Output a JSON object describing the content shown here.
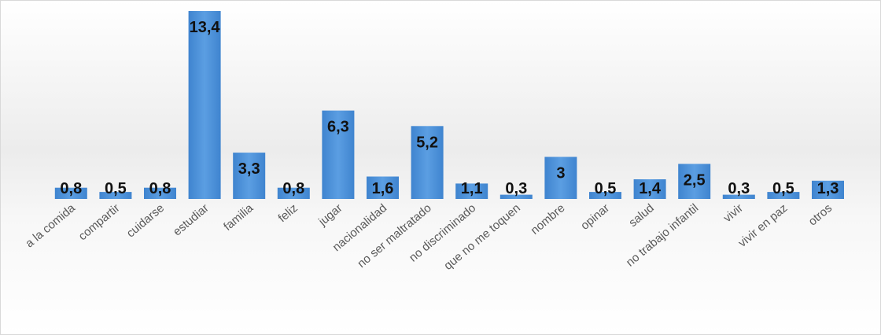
{
  "chart_data": {
    "type": "bar",
    "categories": [
      "a la comida",
      "compartir",
      "cuidarse",
      "estudiar",
      "familia",
      "feliz",
      "jugar",
      "nacionalidad",
      "no ser maltratado",
      "no discriminado",
      "que no me toquen",
      "nombre",
      "opinar",
      "salud",
      "no trabajo infantil",
      "vivir",
      "vivir en paz",
      "otros"
    ],
    "values": [
      0.8,
      0.5,
      0.8,
      13.4,
      3.3,
      0.8,
      6.3,
      1.6,
      5.2,
      1.1,
      0.3,
      3,
      0.5,
      1.4,
      2.5,
      0.3,
      0.5,
      1.3
    ],
    "value_labels": [
      "0,8",
      "0,5",
      "0,8",
      "13,4",
      "3,3",
      "0,8",
      "6,3",
      "1,6",
      "5,2",
      "1,1",
      "0,3",
      "3",
      "0,5",
      "1,4",
      "2,5",
      "0,3",
      "0,5",
      "1,3"
    ],
    "title": "",
    "xlabel": "",
    "ylabel": "",
    "ylim": [
      0,
      13.4
    ],
    "grid": false,
    "legend": "none",
    "bar_color": "#4a8fd6"
  }
}
